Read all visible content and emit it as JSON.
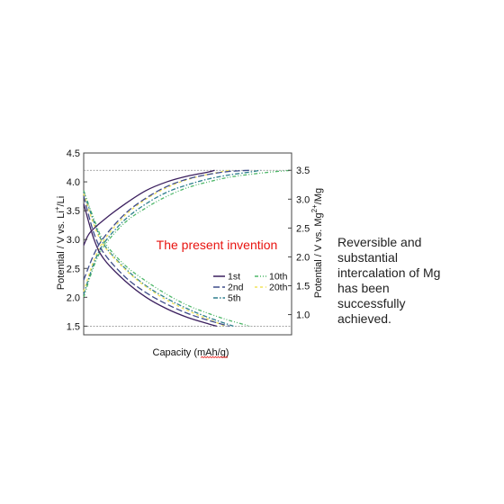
{
  "chart_data": {
    "type": "line",
    "xlabel": "Capacity (mAh/g)",
    "ylabel_left_parts": [
      "Potential / V vs. Li",
      "+",
      "/Li"
    ],
    "ylabel_right_parts": [
      "Potential / V vs. Mg",
      "2+",
      "/Mg"
    ],
    "ylim": [
      1.35,
      4.5
    ],
    "yticks": [
      "1.5",
      "2.0",
      "2.5",
      "3.0",
      "3.5",
      "4.0",
      "4.5"
    ],
    "yticks_right": [
      "1.0",
      "1.5",
      "2.0",
      "2.5",
      "3.0",
      "3.5"
    ],
    "xlim": [
      0,
      100
    ],
    "reference_lines": [
      4.2,
      1.5
    ],
    "annotation": "The present invention",
    "legend_position": "lower-right",
    "grid": false,
    "series": [
      {
        "name": "1st",
        "color": "#3b1f5e",
        "dash": "",
        "charge": [
          [
            0,
            2.9
          ],
          [
            3,
            3.12
          ],
          [
            10,
            3.35
          ],
          [
            20,
            3.62
          ],
          [
            30,
            3.85
          ],
          [
            40,
            4.0
          ],
          [
            50,
            4.1
          ],
          [
            60,
            4.17
          ],
          [
            63,
            4.2
          ]
        ],
        "discharge": [
          [
            0,
            3.62
          ],
          [
            5,
            3.0
          ],
          [
            10,
            2.65
          ],
          [
            20,
            2.28
          ],
          [
            30,
            2.0
          ],
          [
            40,
            1.8
          ],
          [
            50,
            1.65
          ],
          [
            60,
            1.54
          ],
          [
            64,
            1.5
          ]
        ]
      },
      {
        "name": "2nd",
        "color": "#3f4d8a",
        "dash": "7,3",
        "charge": [
          [
            0,
            2.3
          ],
          [
            5,
            2.75
          ],
          [
            10,
            3.05
          ],
          [
            20,
            3.45
          ],
          [
            30,
            3.72
          ],
          [
            40,
            3.92
          ],
          [
            50,
            4.05
          ],
          [
            60,
            4.13
          ],
          [
            70,
            4.18
          ],
          [
            80,
            4.2
          ]
        ],
        "discharge": [
          [
            0,
            3.75
          ],
          [
            5,
            3.1
          ],
          [
            10,
            2.75
          ],
          [
            20,
            2.35
          ],
          [
            30,
            2.08
          ],
          [
            40,
            1.88
          ],
          [
            50,
            1.72
          ],
          [
            60,
            1.6
          ],
          [
            70,
            1.5
          ]
        ]
      },
      {
        "name": "5th",
        "color": "#2e7f8e",
        "dash": "5,2,1.5,2",
        "charge": [
          [
            0,
            2.05
          ],
          [
            5,
            2.6
          ],
          [
            10,
            2.95
          ],
          [
            20,
            3.35
          ],
          [
            30,
            3.62
          ],
          [
            40,
            3.82
          ],
          [
            50,
            3.95
          ],
          [
            60,
            4.05
          ],
          [
            70,
            4.12
          ],
          [
            80,
            4.17
          ],
          [
            85,
            4.2
          ]
        ],
        "discharge": [
          [
            0,
            3.82
          ],
          [
            5,
            3.3
          ],
          [
            10,
            2.9
          ],
          [
            20,
            2.5
          ],
          [
            30,
            2.2
          ],
          [
            40,
            1.98
          ],
          [
            50,
            1.8
          ],
          [
            60,
            1.65
          ],
          [
            72,
            1.5
          ]
        ]
      },
      {
        "name": "10th",
        "color": "#4fb86a",
        "dash": "4,2,1,2,1,2",
        "charge": [
          [
            0,
            2.0
          ],
          [
            5,
            2.55
          ],
          [
            10,
            2.9
          ],
          [
            20,
            3.3
          ],
          [
            30,
            3.55
          ],
          [
            40,
            3.75
          ],
          [
            50,
            3.9
          ],
          [
            60,
            4.0
          ],
          [
            70,
            4.08
          ],
          [
            80,
            4.13
          ],
          [
            90,
            4.17
          ],
          [
            100,
            4.2
          ]
        ],
        "discharge": [
          [
            0,
            3.85
          ],
          [
            5,
            3.35
          ],
          [
            10,
            2.95
          ],
          [
            20,
            2.55
          ],
          [
            30,
            2.28
          ],
          [
            40,
            2.05
          ],
          [
            50,
            1.86
          ],
          [
            60,
            1.72
          ],
          [
            70,
            1.6
          ],
          [
            80,
            1.5
          ]
        ]
      },
      {
        "name": "20th",
        "color": "#f2e35b",
        "dash": "3,3",
        "charge": [
          [
            0,
            2.1
          ],
          [
            5,
            2.65
          ],
          [
            10,
            3.0
          ],
          [
            20,
            3.42
          ],
          [
            30,
            3.7
          ],
          [
            40,
            3.9
          ],
          [
            50,
            4.04
          ],
          [
            60,
            4.13
          ],
          [
            70,
            4.2
          ]
        ],
        "discharge": [
          [
            0,
            3.8
          ],
          [
            5,
            3.25
          ],
          [
            10,
            2.88
          ],
          [
            20,
            2.48
          ],
          [
            30,
            2.18
          ],
          [
            40,
            1.95
          ],
          [
            50,
            1.77
          ],
          [
            60,
            1.62
          ],
          [
            68,
            1.5
          ]
        ]
      }
    ]
  },
  "note_lines": [
    "Reversible and",
    "substantial",
    "intercalation of Mg",
    "has been",
    "successfully",
    "achieved."
  ]
}
